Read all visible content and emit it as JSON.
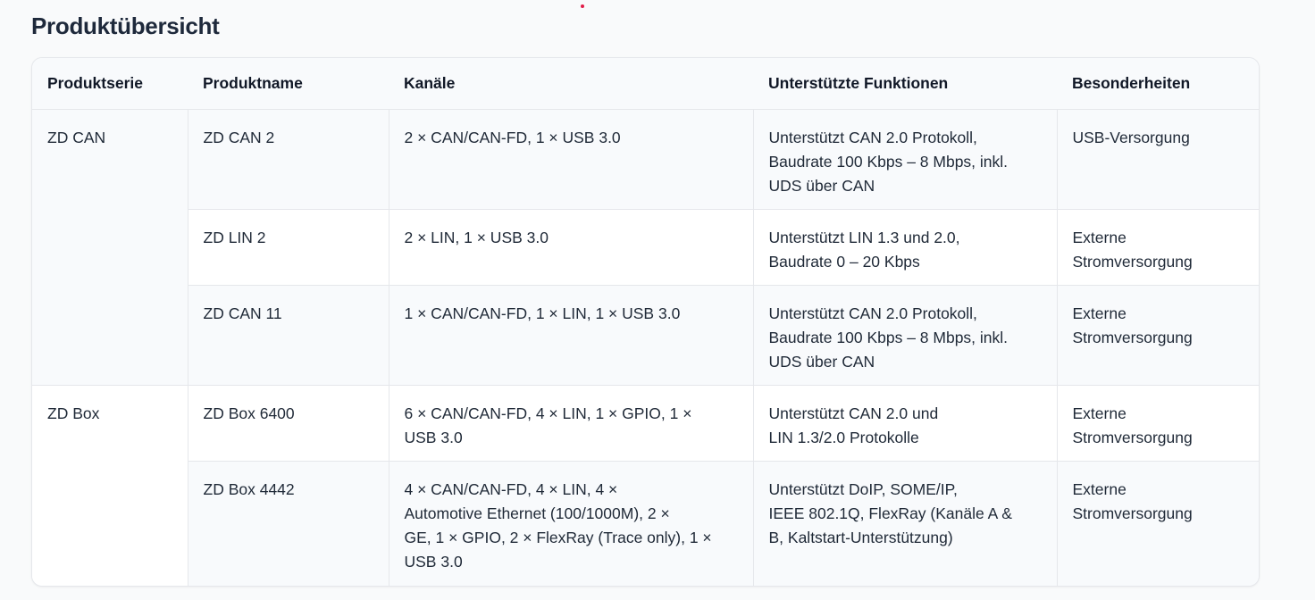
{
  "title": "Produktübersicht",
  "columns": [
    "Produktserie",
    "Produktname",
    "Kanäle",
    "Unterstützte Funktionen",
    "Besonderheiten"
  ],
  "series": [
    "ZD CAN",
    "ZD Box"
  ],
  "rows": [
    {
      "name": "ZD CAN 2",
      "channels": "2 × CAN/CAN-FD, 1 × USB 3.0",
      "functions": "Unterstützt CAN 2.0 Protokoll,\nBaudrate 100 Kbps – 8 Mbps, inkl.\nUDS über CAN",
      "features": "USB-Versorgung"
    },
    {
      "name": "ZD LIN 2",
      "channels": "2 × LIN, 1 × USB 3.0",
      "functions": "Unterstützt LIN 1.3 und 2.0,\nBaudrate 0 – 20 Kbps",
      "features": "Externe\nStromversorgung"
    },
    {
      "name": "ZD CAN 11",
      "channels": "1 × CAN/CAN-FD, 1 × LIN, 1 × USB 3.0",
      "functions": "Unterstützt CAN 2.0 Protokoll,\nBaudrate 100 Kbps – 8 Mbps, inkl.\nUDS über CAN",
      "features": "Externe\nStromversorgung"
    },
    {
      "name": "ZD Box 6400",
      "channels": "6 × CAN/CAN-FD, 4 × LIN, 1 × GPIO, 1 ×\nUSB 3.0",
      "functions": "Unterstützt CAN 2.0 und\nLIN 1.3/2.0 Protokolle",
      "features": "Externe\nStromversorgung"
    },
    {
      "name": "ZD Box 4442",
      "channels": "4 × CAN/CAN-FD, 4 × LIN, 4 ×\nAutomotive Ethernet (100/1000M), 2 ×\nGE, 1 × GPIO, 2 × FlexRay (Trace only), 1 ×\nUSB 3.0",
      "functions": "Unterstützt DoIP, SOME/IP,\nIEEE 802.1Q, FlexRay (Kanäle A &\nB, Kaltstart-Unterstützung)",
      "features": "Externe\nStromversorgung"
    }
  ]
}
